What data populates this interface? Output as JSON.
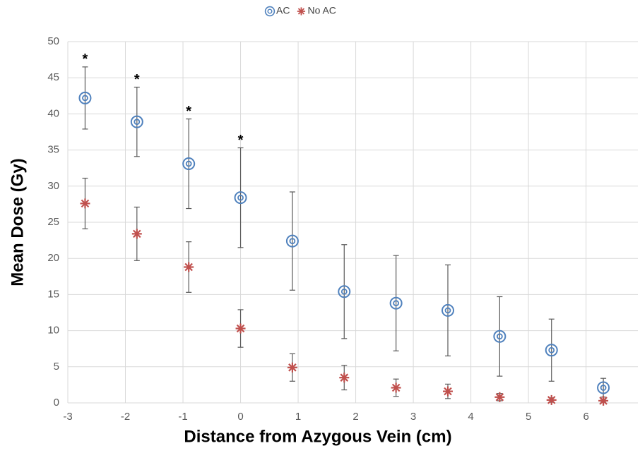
{
  "chart_data": {
    "type": "scatter",
    "x_label": "Distance from Azygous Vein (cm)",
    "y_label": "Mean Dose (Gy)",
    "x": [
      -2.7,
      -1.8,
      -0.9,
      0,
      0.9,
      1.8,
      2.7,
      3.6,
      4.5,
      5.4,
      6.3
    ],
    "series": [
      {
        "name": "AC",
        "color": "#4f81bd",
        "marker": "circle",
        "values": [
          42.2,
          38.9,
          33.1,
          28.4,
          22.4,
          15.4,
          13.8,
          12.8,
          9.2,
          7.3,
          2.1
        ],
        "errors": [
          4.3,
          4.8,
          6.2,
          6.9,
          6.8,
          6.5,
          6.6,
          6.3,
          5.5,
          4.3,
          1.3
        ]
      },
      {
        "name": "No AC",
        "color": "#c0504d",
        "marker": "asterisk",
        "values": [
          27.6,
          23.4,
          18.8,
          10.3,
          4.9,
          3.5,
          2.1,
          1.6,
          0.8,
          0.4,
          0.3
        ],
        "errors": [
          3.5,
          3.7,
          3.5,
          2.6,
          1.9,
          1.7,
          1.2,
          1.0,
          0.5,
          0.3,
          0.2
        ]
      }
    ],
    "annotations": [
      {
        "text": "*",
        "x": -2.7
      },
      {
        "text": "*",
        "x": -1.8
      },
      {
        "text": "*",
        "x": -0.9
      },
      {
        "text": "*",
        "x": 0
      }
    ],
    "xlim": [
      -3,
      6.9
    ],
    "xticks": [
      -3,
      -2,
      -1,
      0,
      1,
      2,
      3,
      4,
      5,
      6
    ],
    "ylim": [
      0,
      50
    ],
    "yticks": [
      0,
      5,
      10,
      15,
      20,
      25,
      30,
      35,
      40,
      45,
      50
    ],
    "grid": true,
    "legend": "top",
    "error_bar_color": "#595959"
  }
}
